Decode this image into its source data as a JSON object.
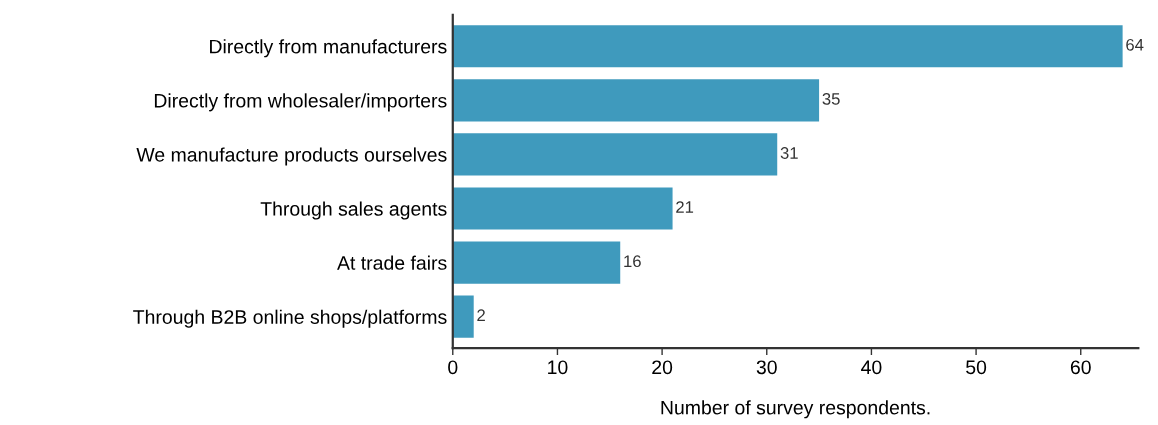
{
  "chart_data": {
    "type": "bar",
    "orientation": "horizontal",
    "categories": [
      "Directly from manufacturers",
      "Directly from wholesaler/importers",
      "We manufacture products ourselves",
      "Through sales agents",
      "At trade fairs",
      "Through B2B online shops/platforms"
    ],
    "values": [
      64,
      35,
      31,
      21,
      16,
      2
    ],
    "color": "#3f9abd",
    "xlim": [
      0,
      65.5
    ],
    "xticks": [
      0,
      10,
      20,
      30,
      40,
      50,
      60
    ],
    "xlabel": "Number of survey respondents.",
    "data_labels": true,
    "grid": false,
    "legend": false
  }
}
